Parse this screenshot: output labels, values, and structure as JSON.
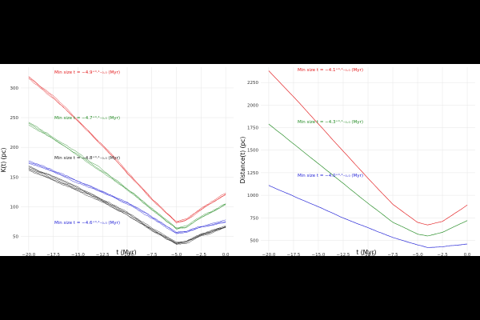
{
  "chart_data": [
    {
      "type": "line",
      "panel": "left",
      "xlabel": "t (Myr)",
      "ylabel": "K(t) (pc)",
      "xlim": [
        -20.8,
        0.8
      ],
      "ylim": [
        25,
        335
      ],
      "xticks": [
        -20.0,
        -17.5,
        -15.0,
        -12.5,
        -10.0,
        -7.5,
        -5.0,
        -2.5,
        0.0
      ],
      "xtick_labels": [
        "−20.0",
        "−17.5",
        "−15.0",
        "−12.5",
        "−10.0",
        "−7.5",
        "−5.0",
        "−2.5",
        "0.0"
      ],
      "yticks": [
        50,
        100,
        150,
        200,
        250,
        300
      ],
      "ytick_labels": [
        "50",
        "100",
        "150",
        "200",
        "250",
        "300"
      ],
      "series": [
        {
          "name": "red",
          "color": "#e31a1c",
          "ensemble": 3,
          "x": [
            -20,
            -17.5,
            -15,
            -12.5,
            -10,
            -7.5,
            -5,
            -4,
            -2.5,
            0
          ],
          "values": [
            318,
            284,
            245,
            204,
            158,
            113,
            73,
            78,
            96,
            121
          ],
          "annotation": "Min size t = −4.9⁺⁰·¹₋₀.₀ (Myr)"
        },
        {
          "name": "green",
          "color": "#238b23",
          "ensemble": 3,
          "x": [
            -20,
            -17.5,
            -15,
            -12.5,
            -10,
            -7.5,
            -5,
            -4,
            -2.5,
            0
          ],
          "values": [
            240,
            215,
            188,
            160,
            130,
            96,
            63,
            66,
            82,
            104
          ],
          "annotation": "Min size t = −4.7⁺⁰·¹₋₀.₀ (Myr)"
        },
        {
          "name": "blue",
          "color": "#1f1fd6",
          "ensemble": 3,
          "x": [
            -20,
            -17.5,
            -15,
            -12.5,
            -10,
            -7.5,
            -5,
            -4,
            -2.5,
            0
          ],
          "values": [
            175,
            160,
            142,
            125,
            106,
            82,
            56,
            58,
            66,
            75
          ],
          "annotation": "Min size t = −4.6⁺⁰·¹₋₀.₀ (Myr)"
        },
        {
          "name": "black",
          "color": "#222222",
          "ensemble": 5,
          "x": [
            -20,
            -17.5,
            -15,
            -12.5,
            -10,
            -7.5,
            -5,
            -4,
            -2.5,
            0
          ],
          "values": [
            165,
            148,
            130,
            110,
            88,
            62,
            38,
            40,
            52,
            66
          ],
          "annotation": "Min size t = −4.8⁺⁰·¹₋₀.₀ (Myr)"
        }
      ]
    },
    {
      "type": "line",
      "panel": "right",
      "xlabel": "t (Myr)",
      "ylabel": "Distance(t) (pc)",
      "xlim": [
        -20.8,
        0.8
      ],
      "ylim": [
        380,
        2420
      ],
      "xticks": [
        -20.0,
        -17.5,
        -15.0,
        -12.5,
        -10.0,
        -7.5,
        -5.0,
        -2.5,
        0.0
      ],
      "xtick_labels": [
        "−20.0",
        "−17.5",
        "−15.0",
        "−12.5",
        "−10.0",
        "−7.5",
        "−5.0",
        "−2.5",
        "0.0"
      ],
      "yticks": [
        500,
        750,
        1000,
        1250,
        1500,
        1750,
        2000,
        2250
      ],
      "ytick_labels": [
        "500",
        "750",
        "1000",
        "1250",
        "1500",
        "1750",
        "2000",
        "2250"
      ],
      "series": [
        {
          "name": "red",
          "color": "#e31a1c",
          "ensemble": 1,
          "x": [
            -20,
            -17.5,
            -15,
            -12.5,
            -10,
            -7.5,
            -5,
            -4,
            -2.5,
            0
          ],
          "values": [
            2380,
            2090,
            1790,
            1490,
            1190,
            900,
            700,
            670,
            710,
            890
          ],
          "annotation": "Min size t = −4.1⁺⁰·¹₋₀.₀ (Myr)"
        },
        {
          "name": "green",
          "color": "#238b23",
          "ensemble": 1,
          "x": [
            -20,
            -17.5,
            -15,
            -12.5,
            -10,
            -7.5,
            -5,
            -4,
            -2.5,
            0
          ],
          "values": [
            1790,
            1570,
            1350,
            1130,
            910,
            700,
            570,
            550,
            590,
            720
          ],
          "annotation": "Min size t = −4.3⁺⁰·¹₋₀.₀ (Myr)"
        },
        {
          "name": "blue",
          "color": "#1f1fd6",
          "ensemble": 1,
          "x": [
            -20,
            -17.5,
            -15,
            -12.5,
            -10,
            -7.5,
            -5,
            -4,
            -2.5,
            0
          ],
          "values": [
            1110,
            990,
            870,
            750,
            640,
            530,
            450,
            420,
            430,
            460
          ],
          "annotation": "Min size t = −4.0⁺⁰·¹₋₀.₀ (Myr)"
        }
      ]
    }
  ]
}
